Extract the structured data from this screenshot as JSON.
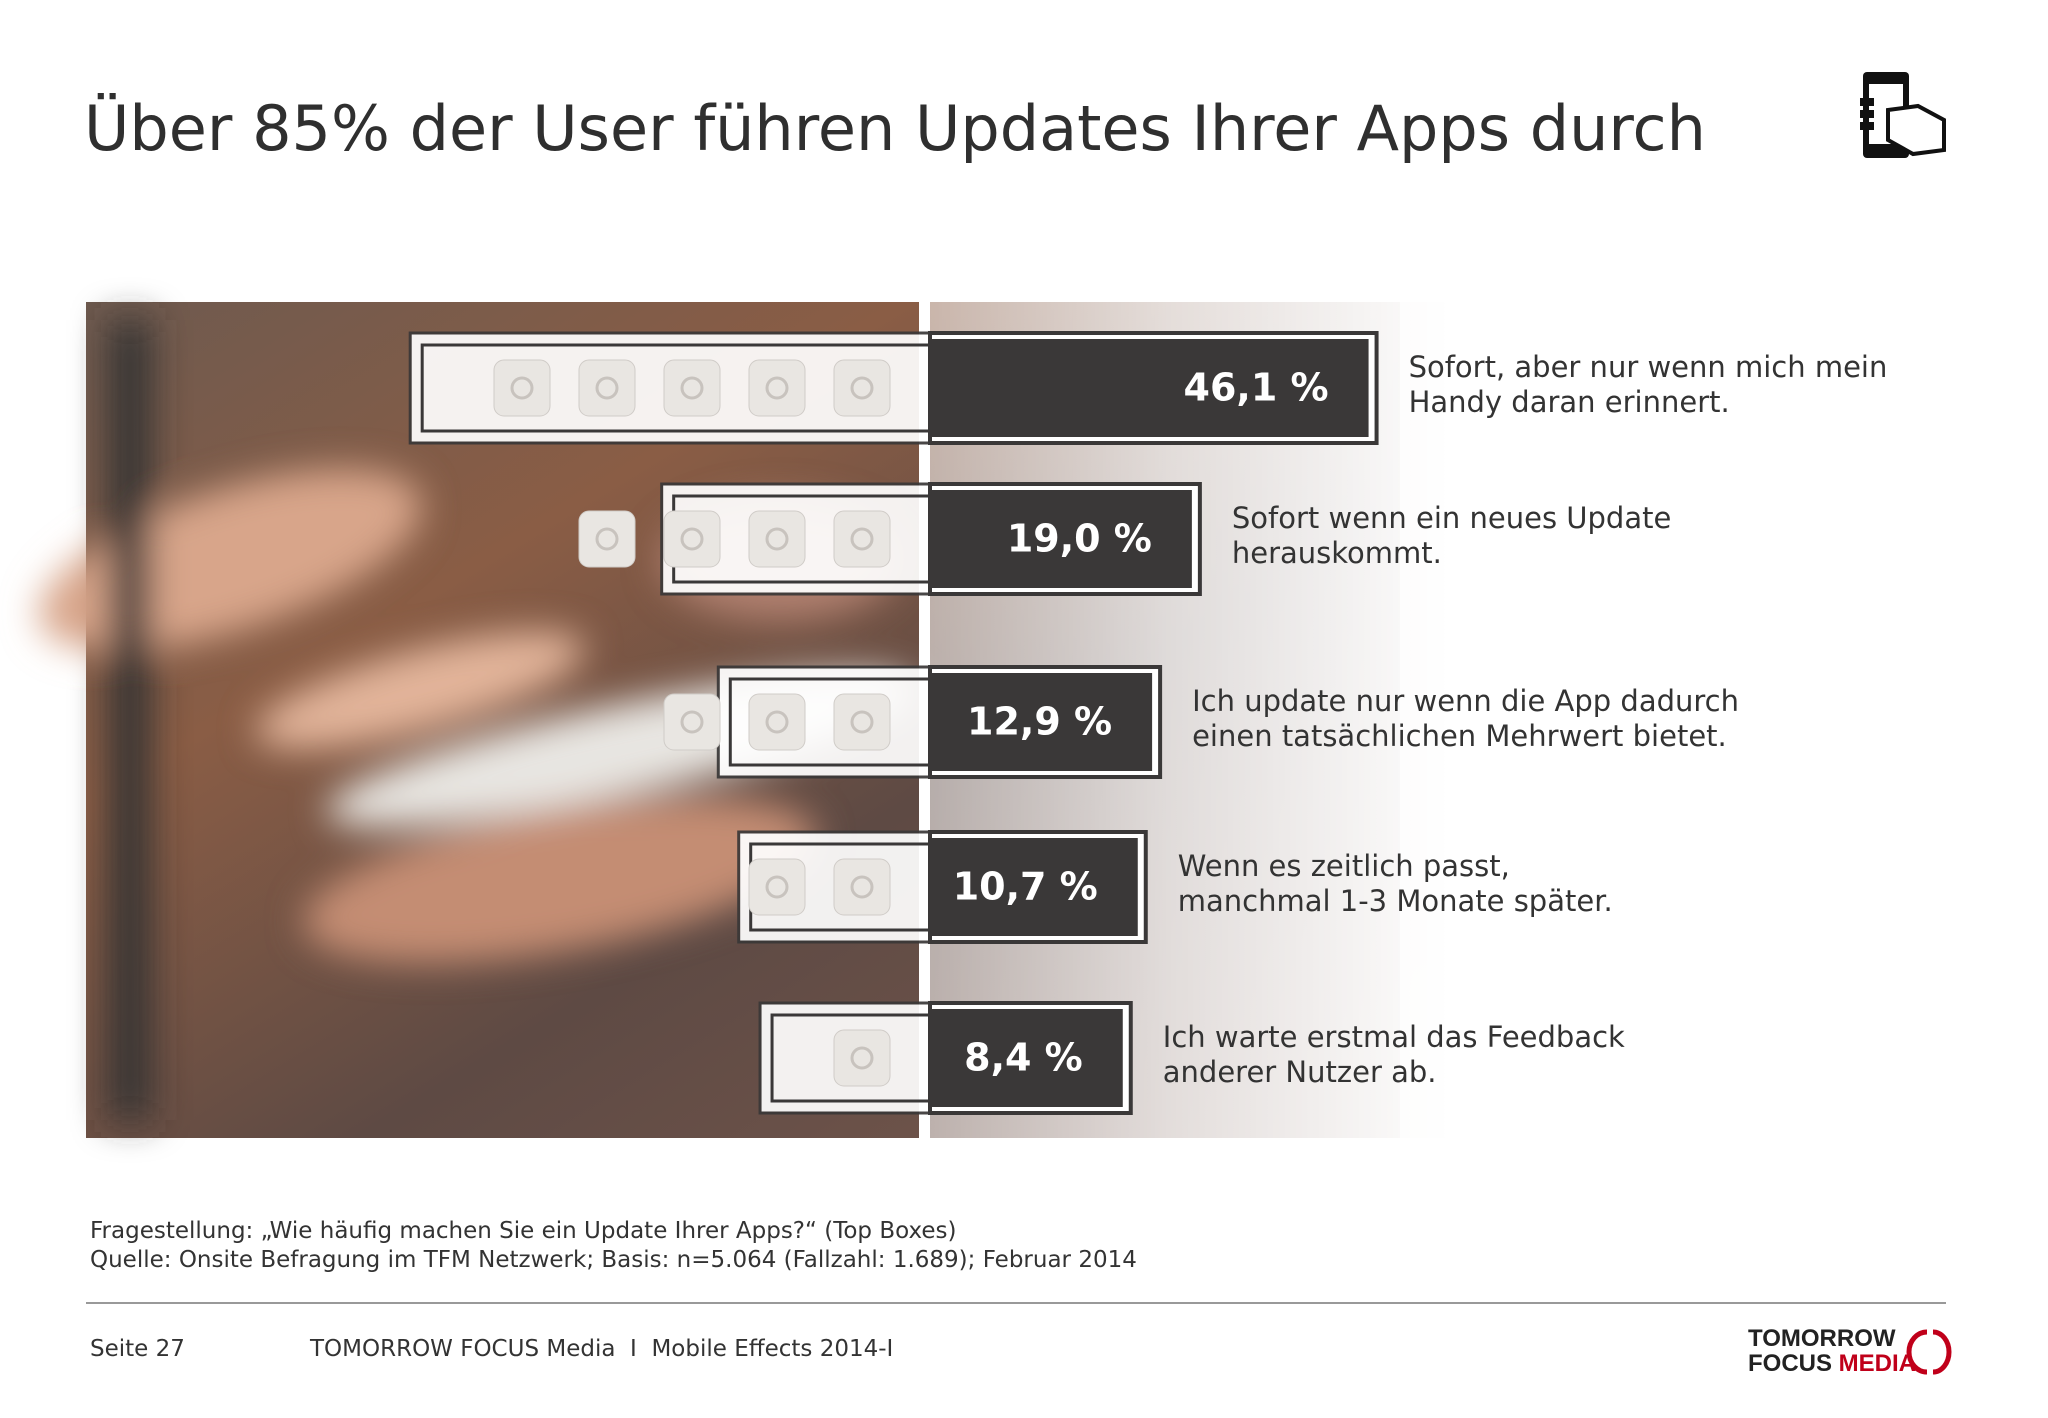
{
  "header": {
    "title": "Über 85% der User führen Updates Ihrer Apps durch"
  },
  "chart_data": {
    "type": "bar",
    "orientation": "horizontal",
    "color": "#3a3838",
    "categories": [
      "Sofort, aber nur wenn mich mein\nHandy daran erinnert.",
      "Sofort wenn ein neues Update\nherauskommt.",
      "Ich update nur wenn die App dadurch\neinen tatsächlichen Mehrwert bietet.",
      "Wenn es zeitlich passt,\nmanchmal 1-3 Monate später.",
      "Ich warte erstmal das Feedback\nanderer Nutzer ab."
    ],
    "values": [
      46.1,
      19.0,
      12.9,
      10.7,
      8.4
    ],
    "value_labels": [
      "46,1 %",
      "19,0 %",
      "12,9 %",
      "10,7 %",
      "8,4 %"
    ]
  },
  "footer": {
    "question": "Fragestellung: „Wie häufig machen Sie ein Update Ihrer Apps?“ (Top Boxes)",
    "source": "Quelle: Onsite Befragung im TFM Netzwerk; Basis: n=5.064 (Fallzahl: 1.689); Februar 2014",
    "page": "Seite 27",
    "publication": "TOMORROW FOCUS Media  I  Mobile Effects 2014-I",
    "logo_line1": "TOMORROW",
    "logo_line2a": "FOCUS ",
    "logo_line2b": "MEDIA"
  }
}
